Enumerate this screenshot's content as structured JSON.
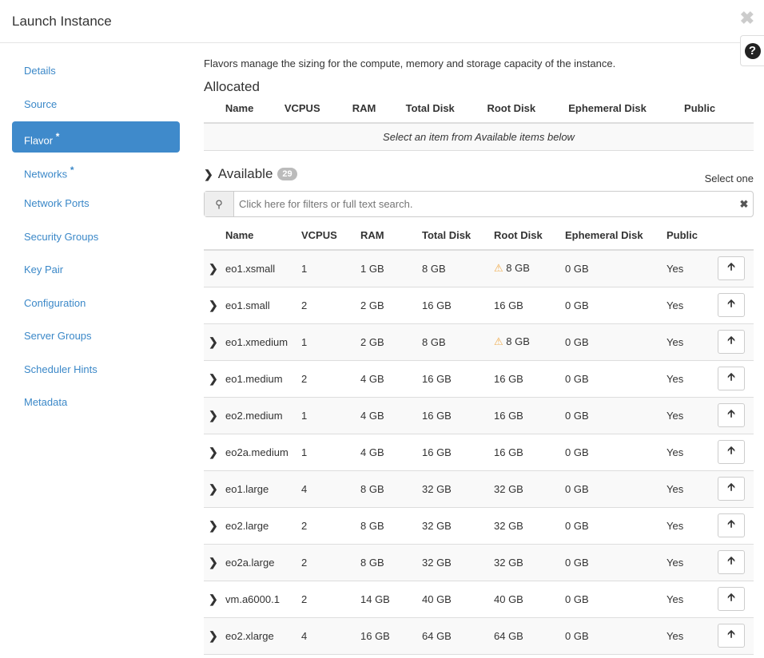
{
  "header": {
    "title": "Launch Instance"
  },
  "sidebar": {
    "items": [
      {
        "label": "Details",
        "required": false
      },
      {
        "label": "Source",
        "required": false
      },
      {
        "label": "Flavor",
        "required": true,
        "active": true
      },
      {
        "label": "Networks",
        "required": true
      },
      {
        "label": "Network Ports",
        "required": false
      },
      {
        "label": "Security Groups",
        "required": false
      },
      {
        "label": "Key Pair",
        "required": false
      },
      {
        "label": "Configuration",
        "required": false
      },
      {
        "label": "Server Groups",
        "required": false
      },
      {
        "label": "Scheduler Hints",
        "required": false
      },
      {
        "label": "Metadata",
        "required": false
      }
    ]
  },
  "main": {
    "description": "Flavors manage the sizing for the compute, memory and storage capacity of the instance.",
    "allocated": {
      "title": "Allocated",
      "empty": "Select an item from Available items below"
    },
    "available": {
      "title": "Available",
      "count": "29",
      "select_one": "Select one"
    },
    "search": {
      "placeholder": "Click here for filters or full text search."
    },
    "columns": [
      "Name",
      "VCPUS",
      "RAM",
      "Total Disk",
      "Root Disk",
      "Ephemeral Disk",
      "Public"
    ],
    "rows": [
      [
        "eo1.xsmall",
        "1",
        "1 GB",
        "8 GB",
        "8 GB",
        "0 GB",
        "Yes",
        true
      ],
      [
        "eo1.small",
        "2",
        "2 GB",
        "16 GB",
        "16 GB",
        "0 GB",
        "Yes",
        false
      ],
      [
        "eo1.xmedium",
        "1",
        "2 GB",
        "8 GB",
        "8 GB",
        "0 GB",
        "Yes",
        true
      ],
      [
        "eo1.medium",
        "2",
        "4 GB",
        "16 GB",
        "16 GB",
        "0 GB",
        "Yes",
        false
      ],
      [
        "eo2.medium",
        "1",
        "4 GB",
        "16 GB",
        "16 GB",
        "0 GB",
        "Yes",
        false
      ],
      [
        "eo2a.medium",
        "1",
        "4 GB",
        "16 GB",
        "16 GB",
        "0 GB",
        "Yes",
        false
      ],
      [
        "eo1.large",
        "4",
        "8 GB",
        "32 GB",
        "32 GB",
        "0 GB",
        "Yes",
        false
      ],
      [
        "eo2.large",
        "2",
        "8 GB",
        "32 GB",
        "32 GB",
        "0 GB",
        "Yes",
        false
      ],
      [
        "eo2a.large",
        "2",
        "8 GB",
        "32 GB",
        "32 GB",
        "0 GB",
        "Yes",
        false
      ],
      [
        "vm.a6000.1",
        "2",
        "14 GB",
        "40 GB",
        "40 GB",
        "0 GB",
        "Yes",
        false
      ],
      [
        "eo2.xlarge",
        "4",
        "16 GB",
        "64 GB",
        "64 GB",
        "0 GB",
        "Yes",
        false
      ]
    ]
  },
  "colors": {
    "accent": "#3f8acb",
    "link": "#3b88c8",
    "warning": "#f0ad4e"
  }
}
